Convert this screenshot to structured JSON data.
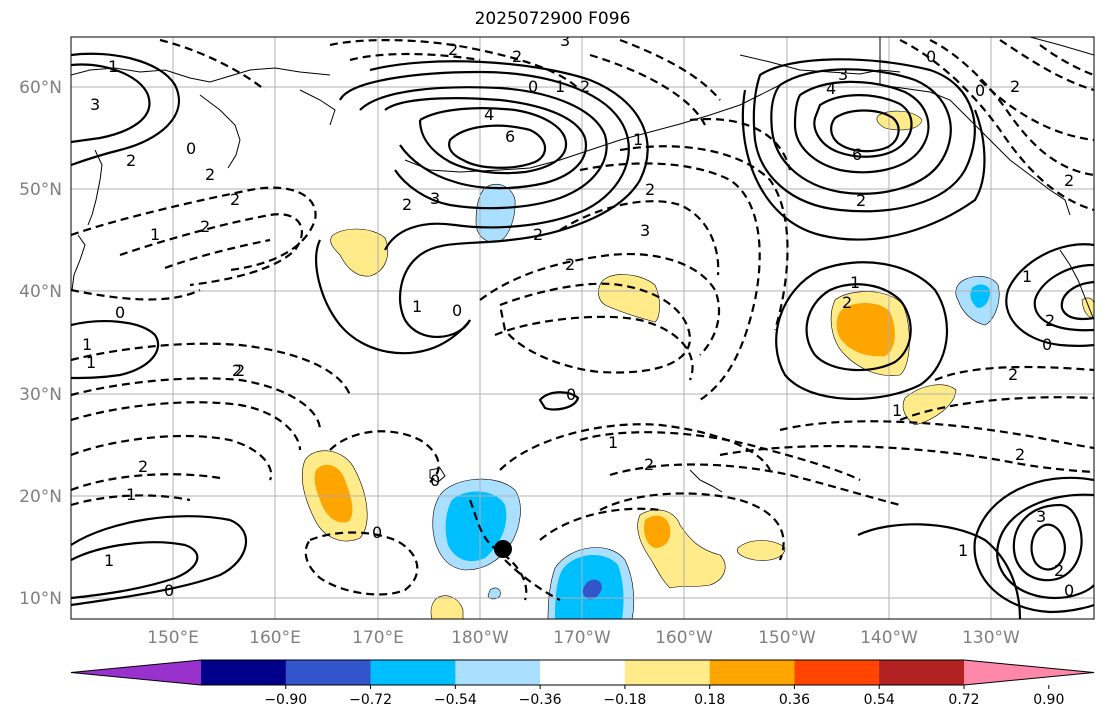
{
  "title": "2025072900 F096",
  "map": {
    "lat_labels": [
      "60°N",
      "50°N",
      "40°N",
      "30°N",
      "20°N",
      "10°N"
    ],
    "lon_labels": [
      "150°E",
      "160°E",
      "170°E",
      "180°W",
      "170°W",
      "160°W",
      "150°W",
      "140°W",
      "130°W"
    ],
    "contour_labels": [
      "1",
      "3",
      "2",
      "0",
      "2",
      "2",
      "1",
      "0",
      "1",
      "2",
      "1",
      "2",
      "2",
      "1",
      "0",
      "1",
      "2",
      "2",
      "3",
      "2",
      "0",
      "1",
      "4",
      "6",
      "2",
      "3",
      "2",
      "1",
      "0",
      "1",
      "2",
      "3",
      "2",
      "2",
      "0",
      "1",
      "0",
      "2",
      "1",
      "0",
      "3",
      "4",
      "6",
      "2",
      "0",
      "0",
      "2",
      "2",
      "1",
      "2",
      "0",
      "2",
      "1",
      "2",
      "2",
      "3",
      "1",
      "0",
      "2"
    ],
    "marker": "black-dot"
  },
  "colorbar": {
    "colors": [
      "#9932cc",
      "#00008b",
      "#3355cc",
      "#00bfff",
      "#aadfff",
      "#ffffff",
      "#ffeb8a",
      "#ffa500",
      "#ff4500",
      "#b22222",
      "#ff88aa"
    ],
    "tick_labels": [
      "−0.90",
      "−0.72",
      "−0.54",
      "−0.36",
      "−0.18",
      "0.18",
      "0.36",
      "0.54",
      "0.72",
      "0.90"
    ]
  }
}
